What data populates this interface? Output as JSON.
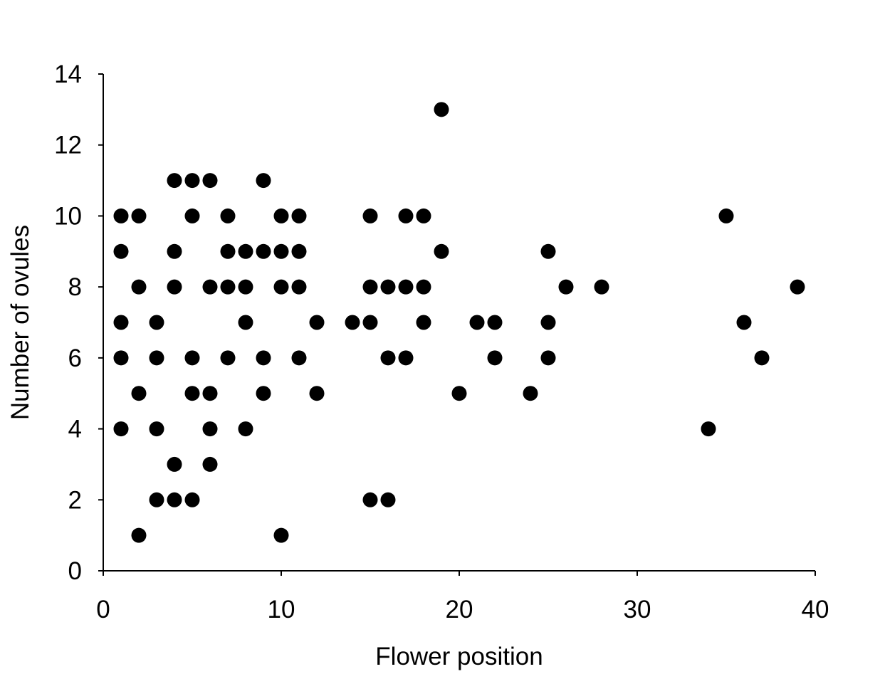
{
  "chart_data": {
    "type": "scatter",
    "xlabel": "Flower position",
    "ylabel": "Number of ovules",
    "xlim": [
      0,
      40
    ],
    "ylim": [
      0,
      14
    ],
    "x_ticks": [
      0,
      10,
      20,
      30,
      40
    ],
    "y_ticks": [
      0,
      2,
      4,
      6,
      8,
      10,
      12,
      14
    ],
    "grid": false,
    "legend": "none",
    "marker_color": "#000000",
    "points": [
      [
        1,
        10
      ],
      [
        1,
        9
      ],
      [
        1,
        7
      ],
      [
        1,
        6
      ],
      [
        1,
        4
      ],
      [
        2,
        10
      ],
      [
        2,
        8
      ],
      [
        2,
        5
      ],
      [
        2,
        1
      ],
      [
        3,
        7
      ],
      [
        3,
        6
      ],
      [
        3,
        4
      ],
      [
        3,
        2
      ],
      [
        4,
        11
      ],
      [
        4,
        9
      ],
      [
        4,
        8
      ],
      [
        4,
        3
      ],
      [
        4,
        2
      ],
      [
        5,
        11
      ],
      [
        5,
        10
      ],
      [
        5,
        6
      ],
      [
        5,
        5
      ],
      [
        5,
        2
      ],
      [
        6,
        11
      ],
      [
        6,
        8
      ],
      [
        6,
        5
      ],
      [
        6,
        4
      ],
      [
        6,
        3
      ],
      [
        7,
        10
      ],
      [
        7,
        9
      ],
      [
        7,
        8
      ],
      [
        7,
        6
      ],
      [
        8,
        9
      ],
      [
        8,
        8
      ],
      [
        8,
        7
      ],
      [
        8,
        4
      ],
      [
        9,
        11
      ],
      [
        9,
        9
      ],
      [
        9,
        6
      ],
      [
        9,
        5
      ],
      [
        10,
        10
      ],
      [
        10,
        9
      ],
      [
        10,
        8
      ],
      [
        10,
        1
      ],
      [
        11,
        10
      ],
      [
        11,
        9
      ],
      [
        11,
        8
      ],
      [
        11,
        6
      ],
      [
        12,
        7
      ],
      [
        12,
        5
      ],
      [
        14,
        7
      ],
      [
        15,
        10
      ],
      [
        15,
        8
      ],
      [
        15,
        7
      ],
      [
        15,
        2
      ],
      [
        16,
        8
      ],
      [
        16,
        6
      ],
      [
        16,
        2
      ],
      [
        17,
        10
      ],
      [
        17,
        8
      ],
      [
        17,
        6
      ],
      [
        18,
        10
      ],
      [
        18,
        8
      ],
      [
        18,
        7
      ],
      [
        19,
        13
      ],
      [
        19,
        9
      ],
      [
        20,
        5
      ],
      [
        21,
        7
      ],
      [
        22,
        7
      ],
      [
        22,
        6
      ],
      [
        24,
        5
      ],
      [
        25,
        9
      ],
      [
        25,
        7
      ],
      [
        25,
        6
      ],
      [
        26,
        8
      ],
      [
        28,
        8
      ],
      [
        34,
        4
      ],
      [
        35,
        10
      ],
      [
        36,
        7
      ],
      [
        37,
        6
      ],
      [
        39,
        8
      ]
    ]
  }
}
